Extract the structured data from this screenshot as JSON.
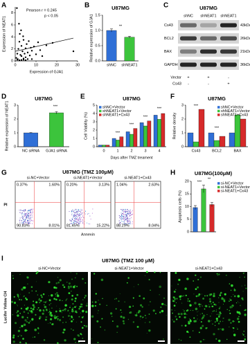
{
  "panel_letters": [
    "A",
    "B",
    "C",
    "D",
    "E",
    "F",
    "G",
    "H",
    "I"
  ],
  "chart_data": [
    {
      "type": "scatter",
      "x_label": "Expression of GJA1",
      "y_label": "Expression of NEAT1",
      "annotations": [
        "Pearson r = 0.245",
        "p < 0.05"
      ],
      "x": [
        0.5,
        1,
        1.2,
        1.5,
        2,
        2.2,
        2.5,
        3,
        3,
        3.5,
        4,
        4,
        4.5,
        5,
        5,
        5.5,
        6,
        6.5,
        7,
        7.5,
        8,
        8,
        9,
        10,
        11,
        12,
        13,
        15,
        18,
        28,
        0.8,
        1.8,
        2.8,
        3.8,
        1,
        2,
        3,
        4,
        5,
        6
      ],
      "values": [
        0.5,
        1.2,
        0.3,
        2,
        3.2,
        4.5,
        1,
        0.8,
        2.5,
        1.6,
        0.4,
        3.5,
        1.2,
        2.1,
        0.6,
        2.8,
        1.4,
        3.3,
        0.9,
        2.2,
        1.7,
        0.3,
        2.4,
        1.1,
        3.1,
        1.8,
        0.8,
        2.6,
        3,
        1.6,
        8.8,
        6.2,
        5.1,
        4.1,
        0.2,
        0.1,
        0.15,
        0.2,
        0.1,
        0.3
      ],
      "color": "#000000",
      "trend": {
        "x": [
          0,
          28
        ],
        "y": [
          1.6,
          3.8
        ]
      },
      "xlim": [
        0,
        30
      ],
      "xticks": [
        0,
        10,
        20,
        30
      ],
      "ylim": [
        0,
        9
      ],
      "yticks": [
        0,
        2,
        4,
        6,
        8
      ]
    },
    {
      "type": "bar",
      "title": "U87MG",
      "y_label": "Relative expression of GJA1",
      "categories": [
        "shNC",
        "shNEAT1"
      ],
      "values": [
        1.0,
        0.78
      ],
      "errors": [
        0.05,
        0.03
      ],
      "colors": [
        "#2f6fd6",
        "#3cc43c"
      ],
      "annotations": [
        "**"
      ],
      "ylim": [
        0,
        1.5
      ],
      "yticks": [
        {
          "value": 0,
          "label": "0.0"
        },
        {
          "value": 0.5,
          "label": "0.5"
        },
        {
          "value": 1,
          "label": "1.0"
        },
        {
          "value": 1.5,
          "label": "1.5"
        }
      ]
    },
    {
      "type": "bar",
      "title": "U87MG",
      "y_label": "Relative expression of NEAT1",
      "categories": [
        "NC siRNA",
        "GJA1 siRNA"
      ],
      "values": [
        1.0,
        2.45
      ],
      "errors": [
        0.02,
        0.08
      ],
      "colors": [
        "#2f6fd6",
        "#3cc43c"
      ],
      "annotations": [
        "***"
      ],
      "ylim": [
        0,
        3
      ],
      "yticks": [
        0,
        1,
        2,
        3
      ]
    },
    {
      "type": "bar",
      "title": "U87MG",
      "y_label": "Cell Viability (%)",
      "x_label": "Days after TMZ treament",
      "categories": [
        "0",
        "1",
        "2",
        "3",
        "4"
      ],
      "legend": "upper left",
      "series": [
        {
          "name": "shNC+Vector",
          "color": "#2f6fd6",
          "values": [
            0.2,
            1.0,
            1.8,
            2.9,
            3.8
          ]
        },
        {
          "name": "shNEAT1+Vector",
          "color": "#3cc43c",
          "values": [
            0.2,
            0.8,
            1.5,
            2.5,
            3.3
          ]
        },
        {
          "name": "shNEAT1+Cx43",
          "color": "#d62a2a",
          "values": [
            0.2,
            1.2,
            2.2,
            3.1,
            4.0
          ]
        }
      ],
      "annotations": [
        "***",
        "***",
        "***",
        "***"
      ],
      "ylim": [
        0,
        5
      ],
      "yticks": [
        0,
        1,
        2,
        3,
        4,
        5
      ]
    },
    {
      "type": "bar",
      "title": "U87MG",
      "y_label": "Relative density",
      "categories": [
        "Cs43",
        "BCL2",
        "BAX"
      ],
      "legend": "upper right",
      "series": [
        {
          "name": "shNC+Vector",
          "color": "#2f6fd6",
          "values": [
            1,
            1,
            1
          ]
        },
        {
          "name": "shNEAT1+Vector",
          "color": "#3cc43c",
          "values": [
            0.35,
            0.45,
            2.3
          ]
        },
        {
          "name": "shNEAT1+Cx43",
          "color": "#d62a2a",
          "values": [
            2.7,
            0.75,
            2.0
          ]
        }
      ],
      "annotations": [
        "***",
        "***"
      ],
      "ylim": [
        0,
        3
      ],
      "yticks": [
        0,
        1,
        2,
        3
      ]
    },
    {
      "type": "bar",
      "title": "U87MG(100μM)",
      "y_label": "Apoptosis cells (%)",
      "categories": [
        null,
        null,
        null
      ],
      "values": [
        9.6,
        17,
        10.8
      ],
      "errors": [
        0.8,
        1.5,
        0.8
      ],
      "colors": [
        "#2f6fd6",
        "#3cc43c",
        "#d62a2a"
      ],
      "legend_names": [
        "si-NC+Vector",
        "si-NEAT1+Vector",
        "si-NEAT1+Cx43"
      ],
      "annotations": [
        "***",
        "**"
      ],
      "ylim": [
        0,
        20
      ],
      "yticks": [
        0,
        5,
        10,
        15,
        20
      ]
    }
  ],
  "blot": {
    "title": "U87MG",
    "lanes": [
      "shNC",
      "shNEAT1",
      "shNEAT1"
    ],
    "rows": [
      {
        "name": "Cs43",
        "size": "43kDa"
      },
      {
        "name": "BCL2",
        "size": "26kDa"
      },
      {
        "name": "BAX",
        "size": "21kDa"
      },
      {
        "name": "GAPDH",
        "size": "36kDa"
      }
    ],
    "treatments": [
      {
        "name": "Vector",
        "signs": [
          "+",
          "+",
          "-"
        ]
      },
      {
        "name": "Cs43",
        "signs": [
          "-",
          "-",
          "+"
        ]
      }
    ]
  },
  "flow": {
    "title": "U87MG (TMZ 100μM)",
    "y_label": "PI",
    "x_label": "Annexin",
    "plots": [
      {
        "label": "si-NC+Vector",
        "quadrants": [
          "0.37%",
          "1.60%",
          "90.83%",
          "8.01%"
        ]
      },
      {
        "label": "si-NEAT1+Vector",
        "quadrants": [
          "0.20%",
          "3.13%",
          "81.45%",
          "15.22%"
        ]
      },
      {
        "label": "si-NEAT1+Cx43",
        "quadrants": [
          "1.04%",
          "2.63%",
          "88.29%",
          "8.04%"
        ]
      }
    ]
  },
  "imaging": {
    "title": "U87MG (TMZ 100 μM)",
    "y_label": "Lucifer Yellow CH",
    "panels": [
      "si-NC+Vector",
      "si-NEAT1+Vector",
      "si-NEAT1+Cx43"
    ]
  }
}
